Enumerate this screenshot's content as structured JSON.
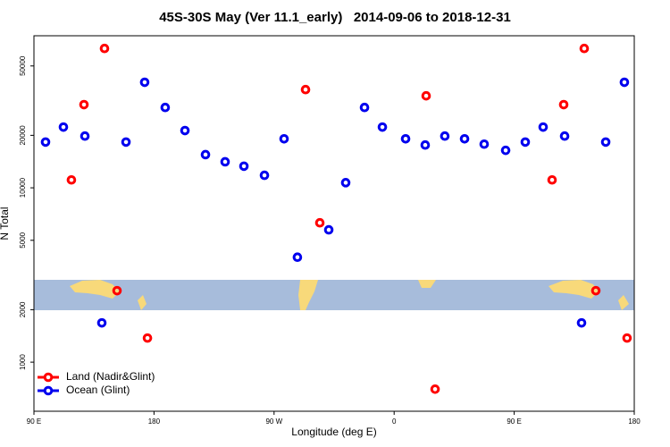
{
  "chart_data": {
    "type": "scatter",
    "title": "45S-30S May (Ver 11.1_early)   2014-09-06 to 2018-12-31",
    "xlabel": "Longitude (deg E)",
    "ylabel": "N Total",
    "xlim": [
      90,
      540
    ],
    "ylim": [
      523,
      74500
    ],
    "ylog": true,
    "xticks": [
      {
        "value": 90,
        "label": "90 E"
      },
      180,
      {
        "value": 270,
        "label": "90 W"
      },
      {
        "value": 360,
        "label": "0"
      },
      {
        "value": 450,
        "label": "90 E"
      },
      {
        "value": 540,
        "label": "180"
      }
    ],
    "yticks": [
      1000,
      2000,
      5000,
      10000,
      20000,
      50000
    ],
    "legend": "bottomleft",
    "series": [
      {
        "name": "Land (Nadir&Glint)",
        "color": "#ff0000",
        "x": [
          118.1,
          127.5,
          142.9,
          152.3,
          175.1,
          293.6,
          304.3,
          384,
          390.7,
          478.4,
          487.1,
          502.5,
          511.2,
          534.6
        ],
        "values": [
          11100,
          30000,
          63000,
          2570,
          1375,
          36600,
          6300,
          33700,
          700,
          11100,
          30000,
          63000,
          2570,
          1375
        ]
      },
      {
        "name": "Ocean (Glint)",
        "color": "#0000ee",
        "x": [
          98.7,
          112.1,
          128.2,
          140.9,
          159,
          173,
          188.4,
          203.2,
          218.6,
          233.3,
          247.4,
          262.8,
          277.5,
          287.5,
          311,
          323.7,
          337.8,
          351.2,
          368.6,
          383.3,
          398,
          412.8,
          427.5,
          443.6,
          458.3,
          471.7,
          487.8,
          500.5,
          518.6,
          532.6
        ],
        "values": [
          18300,
          22300,
          19800,
          1680,
          18300,
          40300,
          28900,
          21300,
          15500,
          14100,
          13300,
          11800,
          19100,
          4000,
          5740,
          10700,
          28900,
          22300,
          19100,
          17600,
          19800,
          19100,
          17800,
          16400,
          18300,
          22300,
          19800,
          1680,
          18300,
          40300
        ]
      }
    ]
  }
}
